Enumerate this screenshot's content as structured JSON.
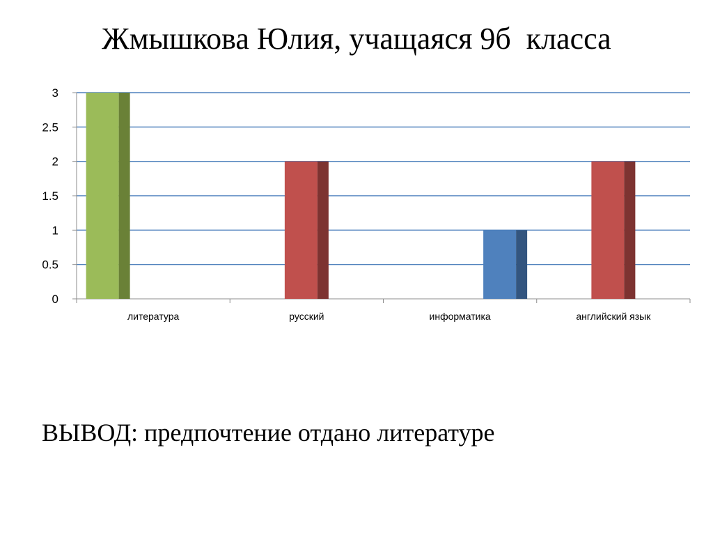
{
  "slide": {
    "title": "Жмышкова Юлия, учащаяся 9б  класса",
    "conclusion": "ВЫВОД: предпочтение отдано литературе"
  },
  "chart_data": {
    "type": "bar",
    "title": "",
    "xlabel": "",
    "ylabel": "",
    "categories": [
      "литература",
      "русский",
      "информатика",
      "английский язык"
    ],
    "series": [
      {
        "values": [
          3,
          null,
          null,
          null
        ],
        "color": "#9BBB59",
        "side_color": "#6A8137"
      },
      {
        "values": [
          null,
          2,
          null,
          2
        ],
        "color": "#C0504D",
        "side_color": "#7D3331"
      },
      {
        "values": [
          null,
          null,
          1,
          null
        ],
        "color": "#4F81BD",
        "side_color": "#33557F"
      }
    ],
    "ylim": [
      0,
      3
    ],
    "yticks": [
      0,
      0.5,
      1,
      1.5,
      2,
      2.5,
      3
    ],
    "ytick_labels": [
      "0",
      "0.5",
      "1",
      "1.5",
      "2",
      "2.5",
      "3"
    ],
    "grid": true,
    "legend": "none",
    "gridline_color": "#4F81BD",
    "axis_color": "#8C8C8C"
  }
}
